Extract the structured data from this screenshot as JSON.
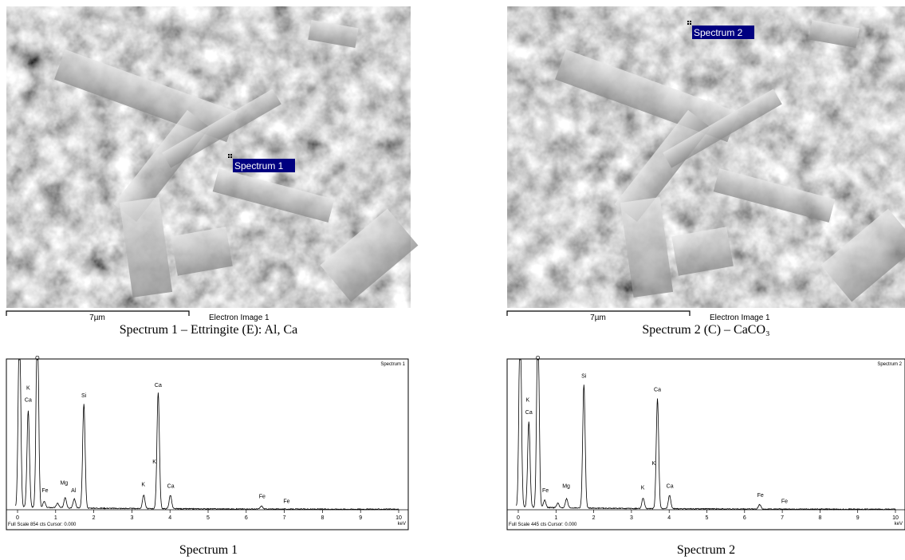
{
  "panels": [
    {
      "image": {
        "marker_label": "Spectrum 1",
        "scale_bar": "7µm",
        "image_label": "Electron Image 1"
      },
      "caption": "Spectrum 1 – Ettringite (E): Al, Ca",
      "spectrum": {
        "title": "Spectrum 1",
        "peak_labels": [
          "O",
          "K",
          "Ca",
          "Fe",
          "Mg",
          "Al",
          "Si",
          "K",
          "K",
          "Ca",
          "Ca",
          "Fe",
          "Fe"
        ],
        "xticks": [
          0,
          1,
          2,
          3,
          4,
          5,
          6,
          7,
          8,
          9,
          10
        ],
        "x_unit": "keV",
        "footer": "Full Scale 854 cts Cursor: 0.000"
      },
      "spectrum_caption": "Spectrum 1"
    },
    {
      "image": {
        "marker_label": "Spectrum 2",
        "scale_bar": "7µm",
        "image_label": "Electron Image 1"
      },
      "caption": "Spectrum 2 (C) – CaCO₃",
      "spectrum": {
        "title": "Spectrum 2",
        "peak_labels": [
          "O",
          "K",
          "Ca",
          "Fe",
          "Mg",
          "Si",
          "K",
          "K",
          "Ca",
          "Ca",
          "Fe",
          "Fe"
        ],
        "xticks": [
          0,
          1,
          2,
          3,
          4,
          5,
          6,
          7,
          8,
          9,
          10
        ],
        "x_unit": "keV",
        "footer": "Full Scale 445 cts Cursor: 0.000"
      },
      "spectrum_caption": "Spectrum 2"
    }
  ]
}
